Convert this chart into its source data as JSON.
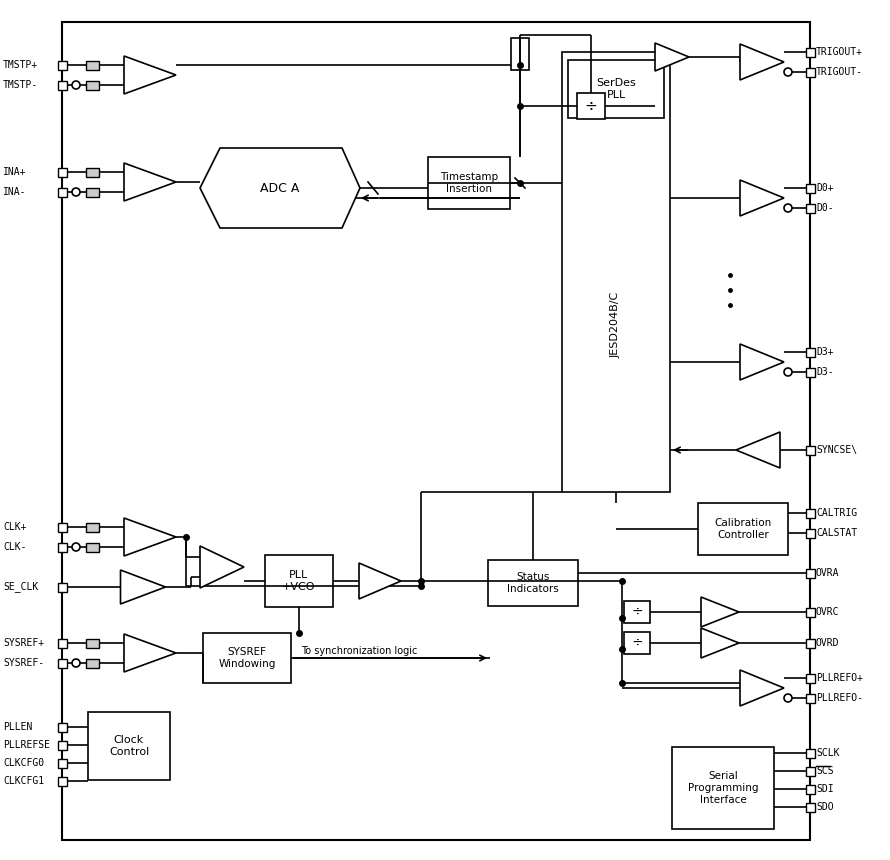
{
  "bg": "#ffffff",
  "lw": 1.2,
  "border": [
    62,
    22,
    748,
    818
  ],
  "tmstp_plus_yt": 65,
  "tmstp_minus_yt": 85,
  "ina_plus_yt": 172,
  "ina_minus_yt": 192,
  "clk_plus_yt": 527,
  "clk_minus_yt": 547,
  "se_clk_yt": 587,
  "sysref_plus_yt": 643,
  "sysref_minus_yt": 663,
  "pllen_yt": 727,
  "pllrefse_yt": 745,
  "clkcfg0_yt": 763,
  "clkcfg1_yt": 781,
  "trigout_plus_yt": 52,
  "trigout_minus_yt": 72,
  "d0_plus_yt": 188,
  "d0_minus_yt": 208,
  "d3_plus_yt": 352,
  "d3_minus_yt": 372,
  "syncse_yt": 450,
  "caltrig_yt": 513,
  "calstat_yt": 533,
  "ovra_yt": 573,
  "ovrc_yt": 612,
  "ovrd_yt": 643,
  "pllrefo_plus_yt": 678,
  "pllrefo_minus_yt": 698,
  "sclk_yt": 753,
  "scs_yt": 771,
  "sdi_yt": 789,
  "sdo_yt": 807
}
